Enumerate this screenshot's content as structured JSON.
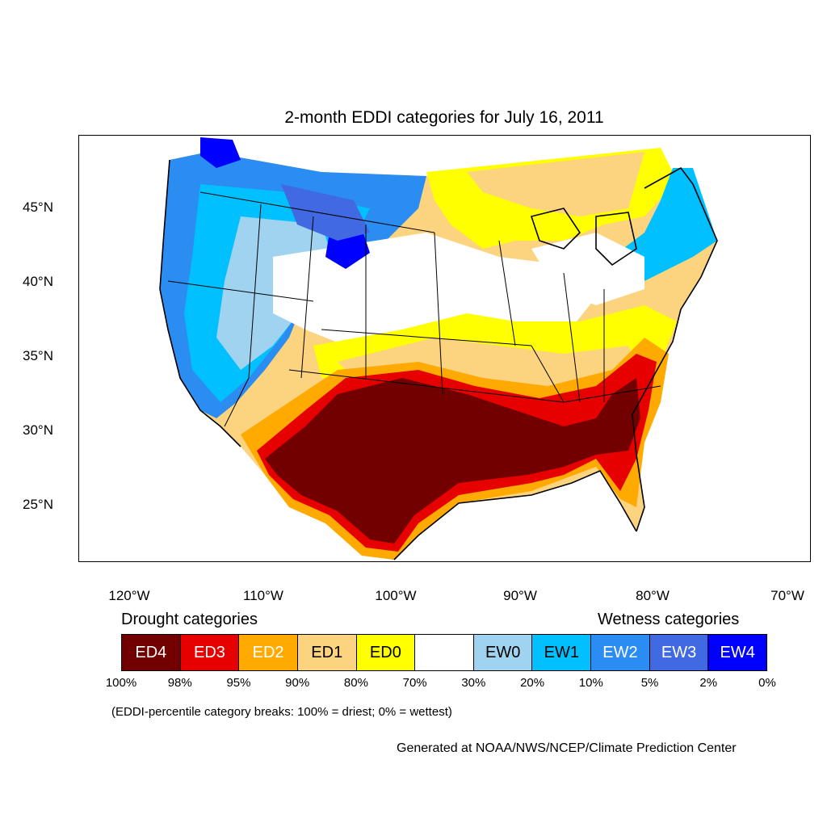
{
  "title": "2-month EDDI categories for July 16, 2011",
  "lat_labels": [
    "45°N",
    "40°N",
    "35°N",
    "30°N",
    "25°N"
  ],
  "lon_labels": [
    "120°W",
    "110°W",
    "100°W",
    "90°W",
    "80°W",
    "70°W"
  ],
  "legend": {
    "drought_heading": "Drought categories",
    "wetness_heading": "Wetness categories",
    "categories": [
      {
        "label": "ED4",
        "color": "#730000",
        "text_color": "#ffffff"
      },
      {
        "label": "ED3",
        "color": "#e60000",
        "text_color": "#ffffff"
      },
      {
        "label": "ED2",
        "color": "#ffaa00",
        "text_color": "#ffffff"
      },
      {
        "label": "ED1",
        "color": "#fcd37f",
        "text_color": "#000000"
      },
      {
        "label": "ED0",
        "color": "#ffff00",
        "text_color": "#000000"
      },
      {
        "label": "",
        "color": "#ffffff",
        "text_color": "#000000"
      },
      {
        "label": "EW0",
        "color": "#9fd3f0",
        "text_color": "#000000"
      },
      {
        "label": "EW1",
        "color": "#00c0ff",
        "text_color": "#000000"
      },
      {
        "label": "EW2",
        "color": "#2b8cf2",
        "text_color": "#ffffff"
      },
      {
        "label": "EW3",
        "color": "#4169e1",
        "text_color": "#ffffff"
      },
      {
        "label": "EW4",
        "color": "#0000ff",
        "text_color": "#ffffff"
      }
    ],
    "percentiles": [
      "100%",
      "98%",
      "95%",
      "90%",
      "80%",
      "70%",
      "30%",
      "20%",
      "10%",
      "5%",
      "2%",
      "0%"
    ],
    "note": "(EDDI-percentile category breaks: 100% = driest; 0% = wettest)"
  },
  "credit": "Generated at NOAA/NWS/NCEP/Climate Prediction Center"
}
